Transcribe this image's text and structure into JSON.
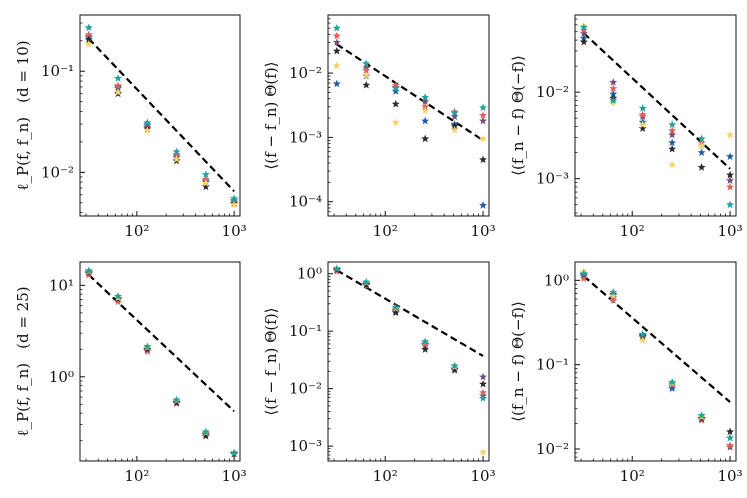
{
  "figure": {
    "xlabel": "",
    "columns": 3,
    "rows": 2
  },
  "colors": {
    "purple": "#6f4e7c",
    "blue": "#1d5fa6",
    "red": "#e1605b",
    "black": "#2b2b2b",
    "gold": "#f6d36b",
    "teal": "#1fa1a0"
  },
  "chart_data": [
    {
      "id": "r1c1",
      "type": "scatter",
      "row": 1,
      "col": 1,
      "ylabel_main": "ℓ_P(f, f_n)",
      "ylabel_note": "(d = 10)",
      "xscale": "log",
      "yscale": "log",
      "xlim": [
        26,
        1150
      ],
      "ylim": [
        0.0037,
        0.36
      ],
      "xticks": [
        {
          "v": 100,
          "label": "10²"
        },
        {
          "v": 1000,
          "label": "10³"
        }
      ],
      "yticks": [
        {
          "v": 0.1,
          "label": "10⁻¹"
        },
        {
          "v": 0.01,
          "label": "10⁻²"
        }
      ],
      "reference_line": {
        "style": "dashed",
        "x": [
          32,
          1000
        ],
        "y": [
          0.21,
          0.0065
        ]
      },
      "series": [
        {
          "name": "purple",
          "x": [
            32,
            64,
            128,
            256,
            512,
            1000
          ],
          "y": [
            0.215,
            0.068,
            0.028,
            0.014,
            0.008,
            0.005
          ]
        },
        {
          "name": "blue",
          "x": [
            32,
            64,
            128,
            256,
            512,
            1000
          ],
          "y": [
            0.22,
            0.07,
            0.029,
            0.0145,
            0.0082,
            0.0052
          ]
        },
        {
          "name": "red",
          "x": [
            32,
            64,
            128,
            256,
            512,
            1000
          ],
          "y": [
            0.23,
            0.072,
            0.03,
            0.015,
            0.0085,
            0.0053
          ]
        },
        {
          "name": "black",
          "x": [
            32,
            64,
            128,
            256,
            512,
            1000
          ],
          "y": [
            0.205,
            0.06,
            0.027,
            0.013,
            0.0072,
            0.0049
          ]
        },
        {
          "name": "gold",
          "x": [
            32,
            64,
            128,
            256,
            512,
            1000
          ],
          "y": [
            0.185,
            0.062,
            0.026,
            0.0135,
            0.0078,
            0.0048
          ]
        },
        {
          "name": "teal",
          "x": [
            32,
            64,
            128,
            256,
            512,
            1000
          ],
          "y": [
            0.27,
            0.085,
            0.031,
            0.016,
            0.0095,
            0.0055
          ]
        }
      ]
    },
    {
      "id": "r1c2",
      "type": "scatter",
      "row": 1,
      "col": 2,
      "ylabel_main": "⟨(f − f_n) Θ(f)⟩",
      "ylabel_note": "",
      "xscale": "log",
      "yscale": "log",
      "xlim": [
        26,
        1150
      ],
      "ylim": [
        6e-05,
        0.08
      ],
      "xticks": [
        {
          "v": 100,
          "label": "10²"
        },
        {
          "v": 1000,
          "label": "10³"
        }
      ],
      "yticks": [
        {
          "v": 0.01,
          "label": "10⁻²"
        },
        {
          "v": 0.001,
          "label": "10⁻³"
        },
        {
          "v": 0.0001,
          "label": "10⁻⁴"
        }
      ],
      "reference_line": {
        "style": "dashed",
        "x": [
          32,
          1000
        ],
        "y": [
          0.028,
          0.0009
        ]
      },
      "series": [
        {
          "name": "purple",
          "x": [
            32,
            64,
            128,
            256,
            512,
            1000
          ],
          "y": [
            0.03,
            0.012,
            0.006,
            0.0036,
            0.0021,
            0.0018
          ]
        },
        {
          "name": "blue",
          "x": [
            32,
            64,
            128,
            256,
            512,
            1000
          ],
          "y": [
            0.0068,
            0.009,
            0.0052,
            0.0018,
            0.0016,
            8.8e-05
          ]
        },
        {
          "name": "red",
          "x": [
            32,
            64,
            128,
            256,
            512,
            1000
          ],
          "y": [
            0.038,
            0.011,
            0.0065,
            0.003,
            0.0025,
            0.0022
          ]
        },
        {
          "name": "black",
          "x": [
            32,
            64,
            128,
            256,
            512,
            1000
          ],
          "y": [
            0.022,
            0.0065,
            0.0033,
            0.00095,
            0.0015,
            0.00045
          ]
        },
        {
          "name": "gold",
          "x": [
            32,
            64,
            128,
            256,
            512,
            1000
          ],
          "y": [
            0.013,
            0.0092,
            0.0017,
            0.0026,
            0.0013,
            0.00095
          ]
        },
        {
          "name": "teal",
          "x": [
            32,
            64,
            128,
            256,
            512,
            1000
          ],
          "y": [
            0.05,
            0.014,
            0.0058,
            0.0042,
            0.0024,
            0.0029
          ]
        }
      ]
    },
    {
      "id": "r1c3",
      "type": "scatter",
      "row": 1,
      "col": 3,
      "ylabel_main": "⟨(f_n − f) Θ(−f)⟩",
      "ylabel_note": "",
      "xscale": "log",
      "yscale": "log",
      "xlim": [
        26,
        1150
      ],
      "ylim": [
        0.00037,
        0.078
      ],
      "xticks": [
        {
          "v": 100,
          "label": "10²"
        },
        {
          "v": 1000,
          "label": "10³"
        }
      ],
      "yticks": [
        {
          "v": 0.01,
          "label": "10⁻²"
        },
        {
          "v": 0.001,
          "label": "10⁻³"
        }
      ],
      "reference_line": {
        "style": "dashed",
        "x": [
          32,
          1000
        ],
        "y": [
          0.048,
          0.0013
        ]
      },
      "series": [
        {
          "name": "purple",
          "x": [
            32,
            64,
            128,
            256,
            512,
            1000
          ],
          "y": [
            0.048,
            0.013,
            0.0052,
            0.0032,
            0.0024,
            0.00095
          ]
        },
        {
          "name": "blue",
          "x": [
            32,
            64,
            128,
            256,
            512,
            1000
          ],
          "y": [
            0.042,
            0.0095,
            0.0045,
            0.0026,
            0.002,
            0.0018
          ]
        },
        {
          "name": "red",
          "x": [
            32,
            64,
            128,
            256,
            512,
            1000
          ],
          "y": [
            0.052,
            0.011,
            0.0055,
            0.0036,
            0.0026,
            0.0008
          ]
        },
        {
          "name": "black",
          "x": [
            32,
            64,
            128,
            256,
            512,
            1000
          ],
          "y": [
            0.038,
            0.0085,
            0.0038,
            0.0022,
            0.00135,
            0.0011
          ]
        },
        {
          "name": "gold",
          "x": [
            32,
            64,
            128,
            256,
            512,
            1000
          ],
          "y": [
            0.058,
            0.0075,
            0.0042,
            0.00145,
            0.0024,
            0.0032
          ]
        },
        {
          "name": "teal",
          "x": [
            32,
            64,
            128,
            256,
            512,
            1000
          ],
          "y": [
            0.056,
            0.008,
            0.0065,
            0.0042,
            0.0029,
            0.0005
          ]
        }
      ]
    },
    {
      "id": "r2c1",
      "type": "scatter",
      "row": 2,
      "col": 1,
      "ylabel_main": "ℓ_P(f, f_n)",
      "ylabel_note": "(d = 25)",
      "xscale": "log",
      "yscale": "log",
      "xlim": [
        26,
        1150
      ],
      "ylim": [
        0.12,
        18
      ],
      "xticks": [
        {
          "v": 100,
          "label": "10²"
        },
        {
          "v": 1000,
          "label": "10³"
        }
      ],
      "yticks": [
        {
          "v": 10,
          "label": "10¹"
        },
        {
          "v": 1,
          "label": "10⁰"
        }
      ],
      "reference_line": {
        "style": "dashed",
        "x": [
          32,
          1000
        ],
        "y": [
          13.0,
          0.42
        ]
      },
      "series": [
        {
          "name": "purple",
          "x": [
            32,
            64,
            128,
            256,
            512,
            1000
          ],
          "y": [
            13.5,
            7.0,
            1.95,
            0.52,
            0.235,
            0.145
          ]
        },
        {
          "name": "blue",
          "x": [
            32,
            64,
            128,
            256,
            512,
            1000
          ],
          "y": [
            14.0,
            7.2,
            2.0,
            0.53,
            0.24,
            0.146
          ]
        },
        {
          "name": "red",
          "x": [
            32,
            64,
            128,
            256,
            512,
            1000
          ],
          "y": [
            13.0,
            6.6,
            1.9,
            0.51,
            0.23,
            0.144
          ]
        },
        {
          "name": "black",
          "x": [
            32,
            64,
            128,
            256,
            512,
            1000
          ],
          "y": [
            13.8,
            7.1,
            2.0,
            0.52,
            0.225,
            0.143
          ]
        },
        {
          "name": "gold",
          "x": [
            32,
            64,
            128,
            256,
            512,
            1000
          ],
          "y": [
            14.2,
            7.3,
            2.1,
            0.55,
            0.245,
            0.147
          ]
        },
        {
          "name": "teal",
          "x": [
            32,
            64,
            128,
            256,
            512,
            1000
          ],
          "y": [
            14.5,
            7.6,
            2.15,
            0.56,
            0.25,
            0.148
          ]
        }
      ]
    },
    {
      "id": "r2c2",
      "type": "scatter",
      "row": 2,
      "col": 2,
      "ylabel_main": "⟨(f − f_n) Θ(f)⟩",
      "ylabel_note": "",
      "xscale": "log",
      "yscale": "log",
      "xlim": [
        26,
        1150
      ],
      "ylim": [
        0.00055,
        1.6
      ],
      "xticks": [
        {
          "v": 100,
          "label": "10²"
        },
        {
          "v": 1000,
          "label": "10³"
        }
      ],
      "yticks": [
        {
          "v": 1,
          "label": "10⁰"
        },
        {
          "v": 0.1,
          "label": "10⁻¹"
        },
        {
          "v": 0.01,
          "label": "10⁻²"
        },
        {
          "v": 0.001,
          "label": "10⁻³"
        }
      ],
      "reference_line": {
        "style": "dashed",
        "x": [
          32,
          1000
        ],
        "y": [
          1.15,
          0.037
        ]
      },
      "series": [
        {
          "name": "purple",
          "x": [
            32,
            64,
            128,
            256,
            512,
            1000
          ],
          "y": [
            1.15,
            0.66,
            0.23,
            0.058,
            0.022,
            0.016
          ]
        },
        {
          "name": "blue",
          "x": [
            32,
            64,
            128,
            256,
            512,
            1000
          ],
          "y": [
            1.2,
            0.68,
            0.22,
            0.06,
            0.022,
            0.0075
          ]
        },
        {
          "name": "red",
          "x": [
            32,
            64,
            128,
            256,
            512,
            1000
          ],
          "y": [
            1.1,
            0.62,
            0.24,
            0.055,
            0.021,
            0.0085
          ]
        },
        {
          "name": "black",
          "x": [
            32,
            64,
            128,
            256,
            512,
            1000
          ],
          "y": [
            1.18,
            0.64,
            0.21,
            0.048,
            0.021,
            0.012
          ]
        },
        {
          "name": "gold",
          "x": [
            32,
            64,
            128,
            256,
            512,
            1000
          ],
          "y": [
            1.25,
            0.7,
            0.25,
            0.065,
            0.024,
            0.00078
          ]
        },
        {
          "name": "teal",
          "x": [
            32,
            64,
            128,
            256,
            512,
            1000
          ],
          "y": [
            1.22,
            0.72,
            0.26,
            0.066,
            0.025,
            0.0068
          ]
        }
      ]
    },
    {
      "id": "r2c3",
      "type": "scatter",
      "row": 2,
      "col": 3,
      "ylabel_main": "⟨(f_n − f) Θ(−f)⟩",
      "ylabel_note": "",
      "xscale": "log",
      "yscale": "log",
      "xlim": [
        26,
        1150
      ],
      "ylim": [
        0.0072,
        1.65
      ],
      "xticks": [
        {
          "v": 100,
          "label": "10²"
        },
        {
          "v": 1000,
          "label": "10³"
        }
      ],
      "yticks": [
        {
          "v": 1,
          "label": "10⁰"
        },
        {
          "v": 0.1,
          "label": "10⁻¹"
        },
        {
          "v": 0.01,
          "label": "10⁻²"
        }
      ],
      "reference_line": {
        "style": "dashed",
        "x": [
          32,
          1000
        ],
        "y": [
          1.12,
          0.036
        ]
      },
      "series": [
        {
          "name": "purple",
          "x": [
            32,
            64,
            128,
            256,
            512,
            1000
          ],
          "y": [
            1.12,
            0.62,
            0.22,
            0.055,
            0.023,
            0.0105
          ]
        },
        {
          "name": "blue",
          "x": [
            32,
            64,
            128,
            256,
            512,
            1000
          ],
          "y": [
            1.15,
            0.66,
            0.225,
            0.052,
            0.022,
            0.0135
          ]
        },
        {
          "name": "red",
          "x": [
            32,
            64,
            128,
            256,
            512,
            1000
          ],
          "y": [
            1.05,
            0.58,
            0.21,
            0.058,
            0.022,
            0.011
          ]
        },
        {
          "name": "black",
          "x": [
            32,
            64,
            128,
            256,
            512,
            1000
          ],
          "y": [
            1.18,
            0.68,
            0.215,
            0.06,
            0.023,
            0.016
          ]
        },
        {
          "name": "gold",
          "x": [
            32,
            64,
            128,
            256,
            512,
            1000
          ],
          "y": [
            1.28,
            0.66,
            0.195,
            0.06,
            0.024,
            0.0135
          ]
        },
        {
          "name": "teal",
          "x": [
            32,
            64,
            128,
            256,
            512,
            1000
          ],
          "y": [
            1.2,
            0.72,
            0.23,
            0.062,
            0.025,
            0.0135
          ]
        }
      ]
    }
  ]
}
